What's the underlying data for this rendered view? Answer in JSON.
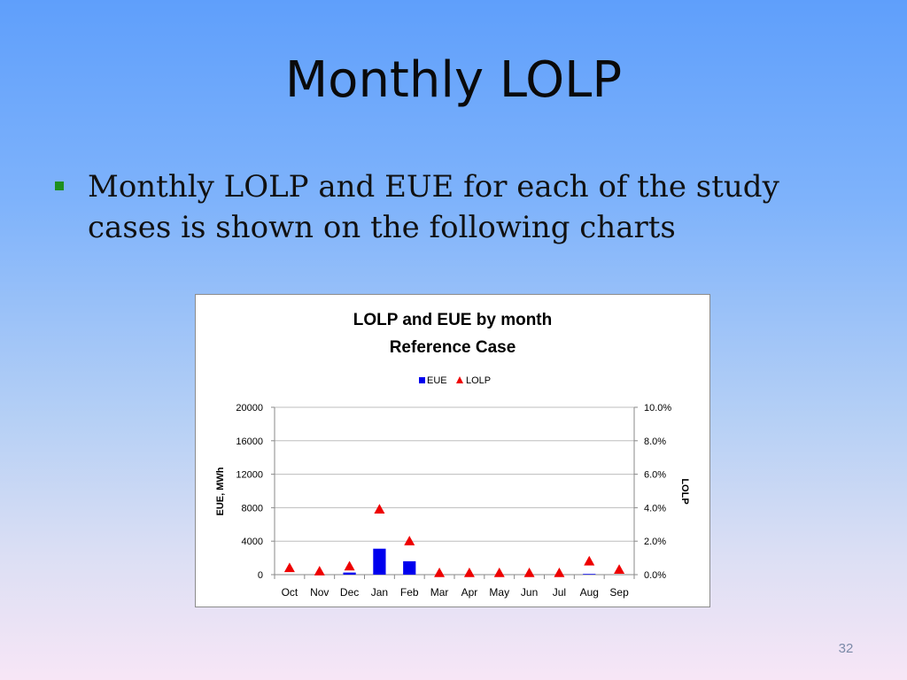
{
  "slide": {
    "title": "Monthly LOLP",
    "bullets": [
      "Monthly LOLP and EUE for each of the study cases is shown on the following charts"
    ],
    "page_number": "32",
    "colors": {
      "bullet": "#1e8f1e",
      "eue_bar": "#0000ee",
      "lolp_marker": "#ee0000"
    }
  },
  "chart_data": {
    "type": "bar",
    "title": "LOLP and EUE by month",
    "subtitle": "Reference Case",
    "categories": [
      "Oct",
      "Nov",
      "Dec",
      "Jan",
      "Feb",
      "Mar",
      "Apr",
      "May",
      "Jun",
      "Jul",
      "Aug",
      "Sep"
    ],
    "series": [
      {
        "name": "EUE",
        "kind": "bar",
        "axis": "left",
        "values": [
          0,
          0,
          250,
          3100,
          1600,
          0,
          0,
          0,
          0,
          0,
          80,
          0
        ]
      },
      {
        "name": "LOLP",
        "kind": "marker",
        "marker": "triangle",
        "axis": "right",
        "values": [
          0.3,
          0.1,
          0.4,
          3.8,
          1.9,
          0.0,
          0.0,
          0.0,
          0.0,
          0.0,
          0.7,
          0.2
        ]
      }
    ],
    "ylabel": "EUE, MWh",
    "ylim": [
      0,
      20000
    ],
    "yticks": [
      "0",
      "4000",
      "8000",
      "12000",
      "16000",
      "20000"
    ],
    "y2label": "LOLP",
    "y2lim": [
      0,
      10
    ],
    "y2ticks": [
      "0.0%",
      "2.0%",
      "4.0%",
      "6.0%",
      "8.0%",
      "10.0%"
    ],
    "grid": true,
    "legend_position": "top"
  }
}
